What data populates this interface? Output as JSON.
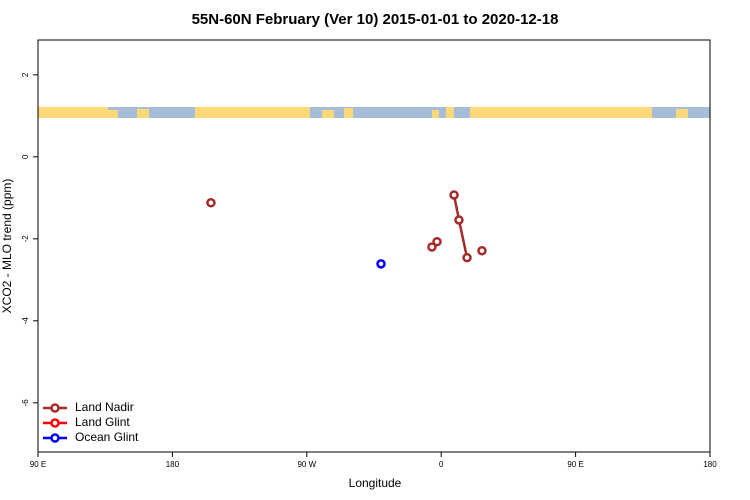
{
  "chart_data": {
    "type": "scatter",
    "title": "55N-60N February (Ver 10)   2015-01-01 to 2020-12-18",
    "x_label": "Longitude",
    "y_label": "XCO2 - MLO trend (ppm)",
    "xlim": [
      -270,
      180
    ],
    "xticks": [
      {
        "value": -270,
        "label": "90 E"
      },
      {
        "value": -180,
        "label": "180"
      },
      {
        "value": -90,
        "label": "90 W"
      },
      0,
      {
        "value": 90,
        "label": "90 E"
      },
      {
        "value": 180,
        "label": "180"
      }
    ],
    "ylim": [
      -7.2,
      2.85
    ],
    "yticks": [
      2,
      0,
      -2,
      -4,
      -6
    ],
    "legend": "bottom-left",
    "series": [
      {
        "name": "Land Nadir",
        "color": "#a52a2a",
        "x": [
          -154.2,
          null,
          -6.2,
          null,
          -2.8,
          null,
          8.6,
          11.9,
          17.3,
          null,
          27.3
        ],
        "values": [
          -1.12,
          null,
          -2.2,
          null,
          -2.07,
          null,
          -0.93,
          -1.54,
          -2.46,
          null,
          -2.29
        ]
      },
      {
        "name": "Land Glint",
        "color": "#ff0000",
        "x": [],
        "values": []
      },
      {
        "name": "Ocean Glint",
        "color": "#0000ff",
        "x": [
          -40.3
        ],
        "values": [
          -2.61
        ]
      }
    ]
  }
}
